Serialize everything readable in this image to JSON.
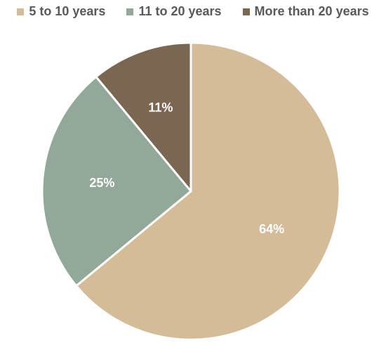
{
  "chart_data": {
    "type": "pie",
    "categories": [
      "5 to 10 years",
      "11 to 20 years",
      "More than 20 years"
    ],
    "values": [
      64,
      25,
      11
    ],
    "labels": [
      "64%",
      "25%",
      "11%"
    ],
    "colors": [
      "#d3bc97",
      "#92a898",
      "#7b6651"
    ],
    "legend_position": "top",
    "start_angle": "12 o'clock",
    "direction": "clockwise"
  }
}
